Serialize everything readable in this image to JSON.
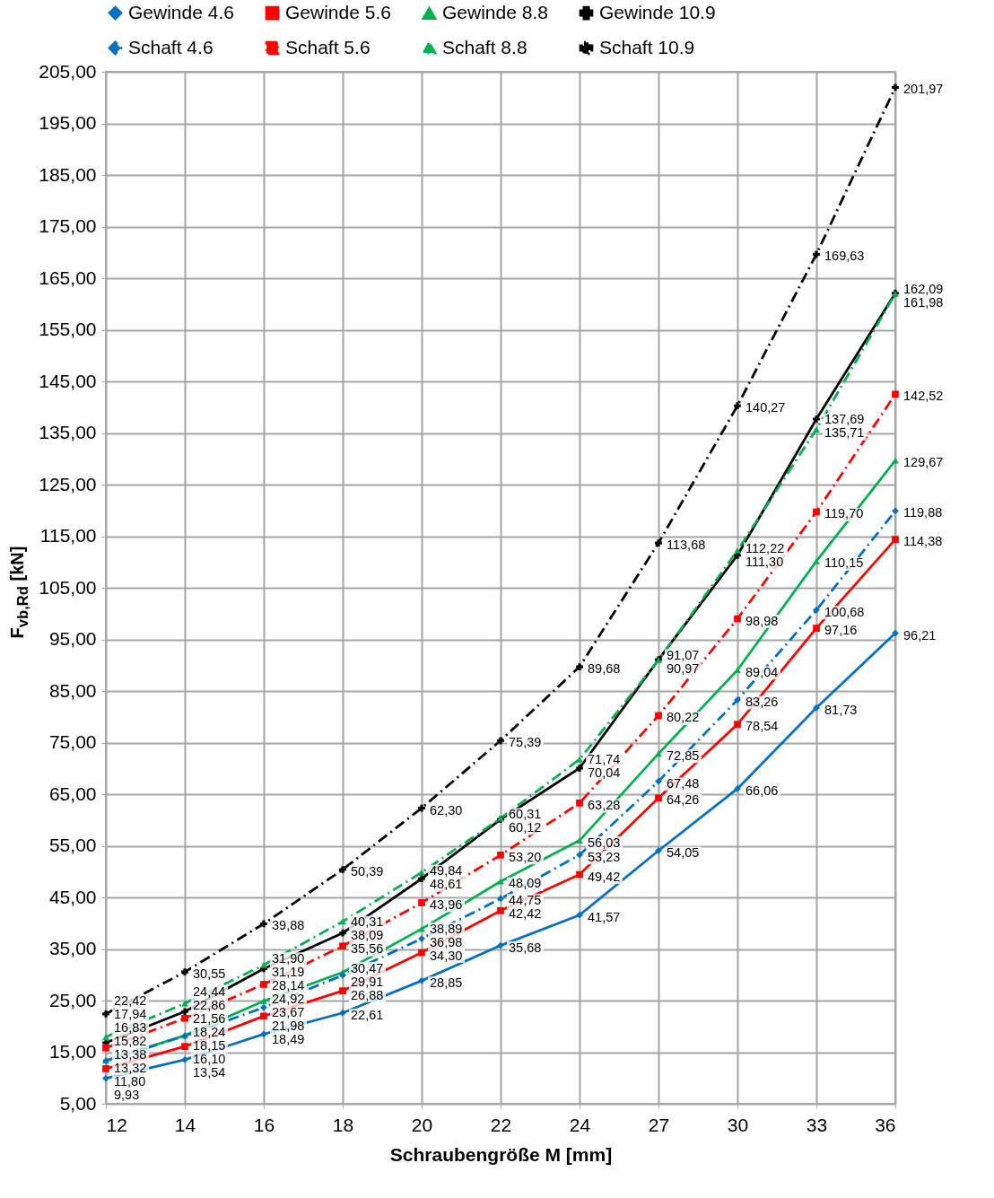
{
  "chart_data": {
    "type": "line",
    "xlabel": "Schraubengröße M  [mm]",
    "ylabel": "F$_{vb,Rd}$ [kN]",
    "categories": [
      "12",
      "14",
      "16",
      "18",
      "20",
      "22",
      "24",
      "27",
      "30",
      "33",
      "36"
    ],
    "ylim": [
      5,
      205
    ],
    "yticks": [
      {
        "value": 5,
        "label": "5,00"
      },
      {
        "value": 15,
        "label": "15,00"
      },
      {
        "value": 25,
        "label": "25,00"
      },
      {
        "value": 35,
        "label": "35,00"
      },
      {
        "value": 45,
        "label": "45,00"
      },
      {
        "value": 55,
        "label": "55,00"
      },
      {
        "value": 65,
        "label": "65,00"
      },
      {
        "value": 75,
        "label": "75,00"
      },
      {
        "value": 85,
        "label": "85,00"
      },
      {
        "value": 95,
        "label": "95,00"
      },
      {
        "value": 105,
        "label": "105,00"
      },
      {
        "value": 115,
        "label": "115,00"
      },
      {
        "value": 125,
        "label": "125,00"
      },
      {
        "value": 135,
        "label": "135,00"
      },
      {
        "value": 145,
        "label": "145,00"
      },
      {
        "value": 155,
        "label": "155,00"
      },
      {
        "value": 165,
        "label": "165,00"
      },
      {
        "value": 175,
        "label": "175,00"
      },
      {
        "value": 185,
        "label": "185,00"
      },
      {
        "value": 195,
        "label": "195,00"
      },
      {
        "value": 205,
        "label": "205,00"
      }
    ],
    "grid": true,
    "legend": "top",
    "series": [
      {
        "name": "Gewinde 4.6",
        "color": "#0070c0",
        "marker": "diamond",
        "line_style": "solid",
        "values": [
          9.93,
          13.54,
          18.49,
          22.61,
          28.85,
          35.68,
          41.57,
          54.05,
          66.06,
          81.73,
          96.21
        ],
        "value_labels": [
          "9,93",
          "13,54",
          "18,49",
          "22,61",
          "28,85",
          "35,68",
          "41,57",
          "54,05",
          "66,06",
          "81,73",
          "96,21"
        ]
      },
      {
        "name": "Gewinde 5.6",
        "color": "#ff0000",
        "marker": "square",
        "line_style": "solid",
        "values": [
          11.8,
          16.1,
          21.98,
          26.88,
          34.3,
          42.42,
          49.42,
          64.26,
          78.54,
          97.16,
          114.38
        ],
        "value_labels": [
          "11,80",
          "16,10",
          "21,98",
          "26,88",
          "34,30",
          "42,42",
          "49,42",
          "64,26",
          "78,54",
          "97,16",
          "114,38"
        ]
      },
      {
        "name": "Gewinde 8.8",
        "color": "#00b050",
        "marker": "triangle",
        "line_style": "solid",
        "values": [
          13.38,
          18.24,
          24.92,
          30.47,
          38.89,
          48.09,
          56.03,
          72.85,
          89.04,
          110.15,
          129.67
        ],
        "value_labels": [
          "13,38",
          "18,24",
          "24,92",
          "30,47",
          "38,89",
          "48,09",
          "56,03",
          "72,85",
          "89,04",
          "110,15",
          "129,67"
        ]
      },
      {
        "name": "Gewinde 10.9",
        "color": "#000000",
        "marker": "cross",
        "line_style": "solid",
        "values": [
          16.83,
          22.86,
          31.19,
          38.09,
          48.61,
          60.12,
          70.04,
          91.07,
          111.3,
          137.69,
          162.09
        ],
        "value_labels": [
          "16,83",
          "22,86",
          "31,19",
          "38,09",
          "48,61",
          "60,12",
          "70,04",
          "91,07",
          "111,30",
          "137,69",
          "162,09"
        ]
      },
      {
        "name": "Schaft 4.6",
        "color": "#0070c0",
        "marker": "diamond",
        "line_style": "dashed",
        "values": [
          13.32,
          18.15,
          23.67,
          29.91,
          36.98,
          44.75,
          53.23,
          67.48,
          83.26,
          100.68,
          119.88
        ],
        "value_labels": [
          "13,32",
          "18,15",
          "23,67",
          "29,91",
          "36,98",
          "44,75",
          "53,23",
          "67,48",
          "83,26",
          "100,68",
          "119,88"
        ]
      },
      {
        "name": "Schaft 5.6",
        "color": "#ff0000",
        "marker": "square",
        "line_style": "dashed",
        "values": [
          15.82,
          21.56,
          28.14,
          35.56,
          43.96,
          53.2,
          63.28,
          80.22,
          98.98,
          119.7,
          142.52
        ],
        "value_labels": [
          "15,82",
          "21,56",
          "28,14",
          "35,56",
          "43,96",
          "53,20",
          "63,28",
          "80,22",
          "98,98",
          "119,70",
          "142,52"
        ]
      },
      {
        "name": "Schaft 8.8",
        "color": "#00b050",
        "marker": "triangle",
        "line_style": "dashed",
        "values": [
          17.94,
          24.44,
          31.9,
          40.31,
          49.84,
          60.31,
          71.74,
          90.97,
          112.22,
          135.71,
          161.98
        ],
        "value_labels": [
          "17,94",
          "24,44",
          "31,90",
          "40,31",
          "49,84",
          "60,31",
          "71,74",
          "90,97",
          "112,22",
          "135,71",
          "161,98"
        ]
      },
      {
        "name": "Schaft 10.9",
        "color": "#000000",
        "marker": "cross",
        "line_style": "dashed",
        "values": [
          22.42,
          30.55,
          39.88,
          50.39,
          62.3,
          75.39,
          89.68,
          113.68,
          140.27,
          169.63,
          201.97
        ],
        "value_labels": [
          "22,42",
          "30,55",
          "39,88",
          "50,39",
          "62,30",
          "75,39",
          "89,68",
          "113,68",
          "140,27",
          "169,63",
          "201,97"
        ]
      }
    ]
  }
}
